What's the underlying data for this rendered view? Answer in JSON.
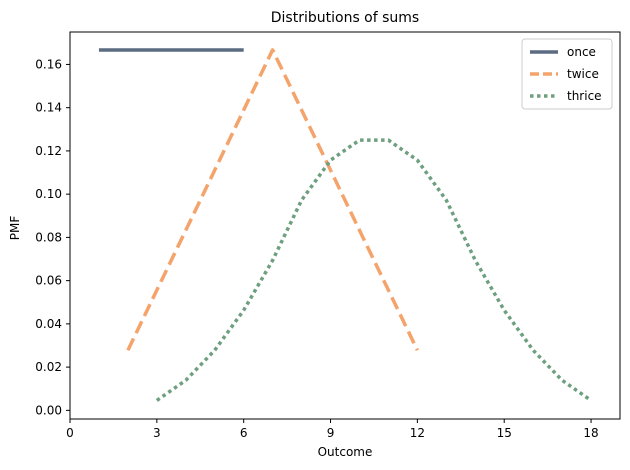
{
  "chart_data": {
    "type": "line",
    "title": "Distributions of sums",
    "xlabel": "Outcome",
    "ylabel": "PMF",
    "xlim": [
      0,
      19
    ],
    "ylim": [
      -0.004,
      0.175
    ],
    "xticks": [
      0,
      3,
      6,
      9,
      12,
      15,
      18
    ],
    "yticks": [
      0.0,
      0.02,
      0.04,
      0.06,
      0.08,
      0.1,
      0.12,
      0.14,
      0.16
    ],
    "ytick_labels": [
      "0.00",
      "0.02",
      "0.04",
      "0.06",
      "0.08",
      "0.10",
      "0.12",
      "0.14",
      "0.16"
    ],
    "grid": false,
    "legend": "top-right",
    "series": [
      {
        "name": "once",
        "color": "#5a6b82",
        "dash": "solid",
        "x": [
          1,
          2,
          3,
          4,
          5,
          6
        ],
        "y": [
          0.1667,
          0.1667,
          0.1667,
          0.1667,
          0.1667,
          0.1667
        ]
      },
      {
        "name": "twice",
        "color": "#f4a36b",
        "dash": "dashed",
        "x": [
          2,
          3,
          4,
          5,
          6,
          7,
          8,
          9,
          10,
          11,
          12
        ],
        "y": [
          0.0278,
          0.0556,
          0.0833,
          0.1111,
          0.1389,
          0.1667,
          0.1389,
          0.1111,
          0.0833,
          0.0556,
          0.0278
        ]
      },
      {
        "name": "thrice",
        "color": "#6e9f7f",
        "dash": "dotted",
        "x": [
          3,
          4,
          5,
          6,
          7,
          8,
          9,
          10,
          11,
          12,
          13,
          14,
          15,
          16,
          17,
          18
        ],
        "y": [
          0.0046,
          0.0139,
          0.0278,
          0.0463,
          0.0694,
          0.0972,
          0.1157,
          0.125,
          0.125,
          0.1157,
          0.0972,
          0.0694,
          0.0463,
          0.0278,
          0.0139,
          0.0046
        ]
      }
    ]
  }
}
